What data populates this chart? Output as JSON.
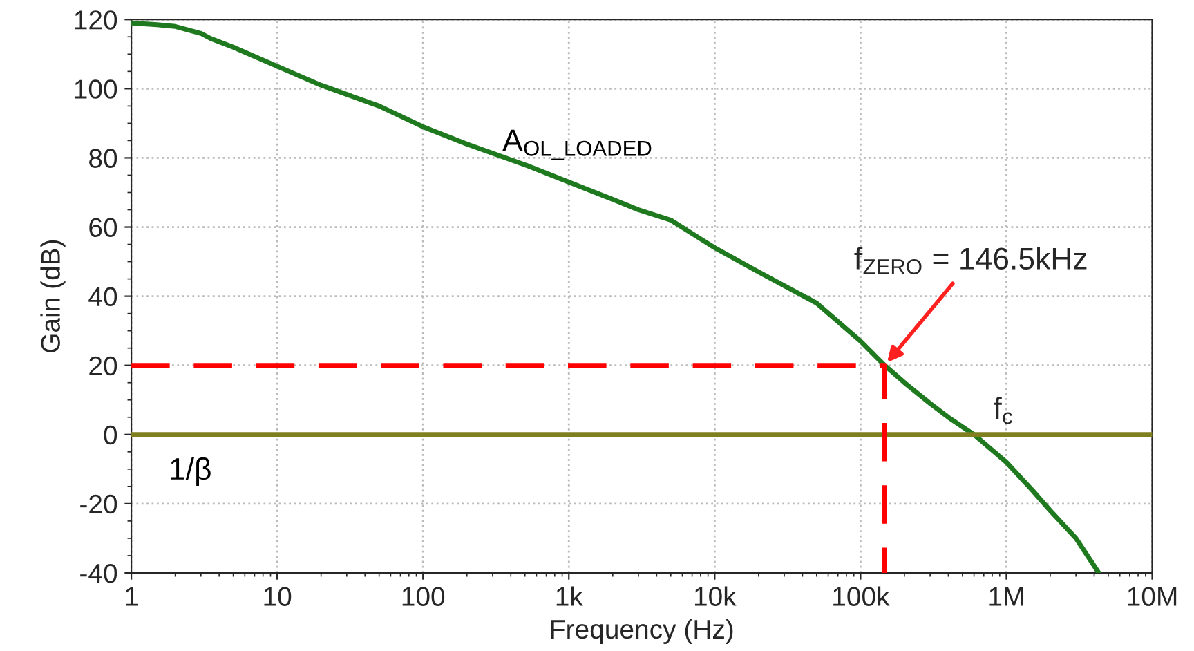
{
  "chart_data": {
    "type": "line",
    "xlabel": "Frequency (Hz)",
    "ylabel": "Gain (dB)",
    "log": "x",
    "xlim": [
      1,
      10000000
    ],
    "xticks": [
      1,
      10,
      100,
      {
        "value": 1000,
        "label": "1k"
      },
      {
        "value": 10000,
        "label": "10k"
      },
      {
        "value": 100000,
        "label": "100k"
      },
      {
        "value": 1000000,
        "label": "1M"
      },
      {
        "value": 10000000,
        "label": "10M"
      }
    ],
    "ylim": [
      -40,
      120
    ],
    "yticks": [
      -40,
      -20,
      0,
      20,
      40,
      60,
      80,
      100,
      120
    ],
    "grid": true,
    "series": [
      {
        "name": "A$_{OL_LOADED}$",
        "color": "#1f7a1f",
        "line_style": "solid",
        "x": [
          1,
          1.5,
          2,
          3,
          3.5,
          5,
          10,
          20,
          50,
          100,
          200,
          500,
          1000,
          2000,
          3000,
          5000,
          10000,
          20000,
          50000,
          100000,
          146500,
          200000,
          300000,
          400000,
          600000,
          1000000,
          1500000,
          2000000,
          3000000,
          4300000
        ],
        "values": [
          119,
          118.5,
          118,
          116,
          114.5,
          112,
          106.5,
          101,
          95,
          89,
          84,
          78,
          73,
          68,
          65,
          62,
          54,
          47,
          38,
          27,
          20,
          15,
          9,
          5,
          0,
          -8,
          -16,
          -22,
          -30,
          -40
        ]
      },
      {
        "name": "1/β",
        "color": "#7f7f1f",
        "line_style": "solid",
        "x": [
          1,
          10000000
        ],
        "values": [
          0,
          0
        ]
      },
      {
        "color": "#ff0000",
        "line_style": "dashed",
        "x": [
          1,
          146500,
          146500
        ],
        "values": [
          20,
          20,
          -40
        ]
      }
    ],
    "annotations": [
      {
        "text": "f$_{ZERO}$ = 146.5kHz",
        "x": 146500,
        "y": 20
      },
      {
        "text": "f$_{c}$",
        "x": 600000,
        "y": 0
      }
    ]
  }
}
